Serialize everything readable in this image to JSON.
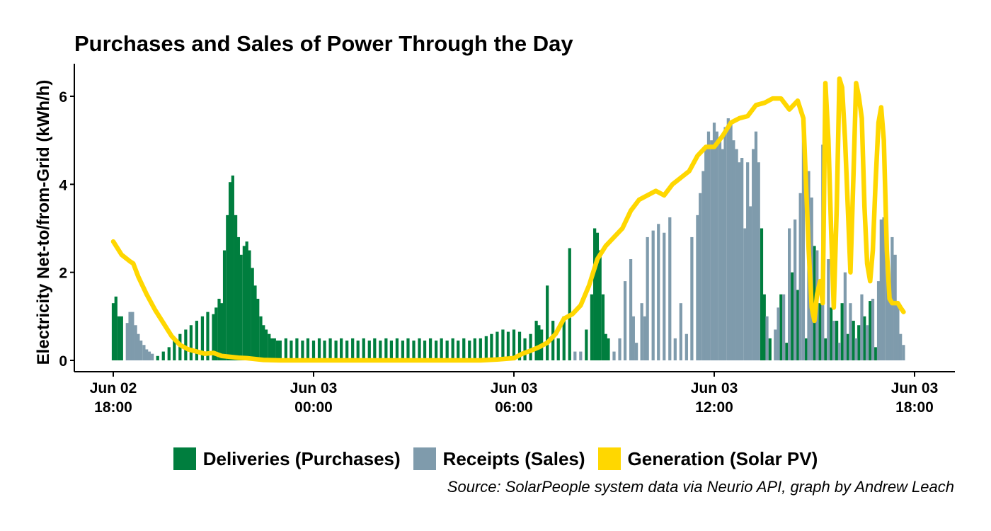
{
  "chart_data": {
    "type": "bar",
    "title": "Purchases and Sales of Power Through the Day",
    "ylabel": "Electricity Net-to/from-Grid (kWh/h)",
    "xlabel": "",
    "ylim": [
      0,
      6.7
    ],
    "x_range_hours": [
      -0.5,
      23.5
    ],
    "y_ticks": [
      "0",
      "2",
      "4",
      "6"
    ],
    "x_ticks": [
      {
        "date": "Jun 02",
        "time": "18:00",
        "x": 0
      },
      {
        "date": "Jun 03",
        "time": "00:00",
        "x": 6
      },
      {
        "date": "Jun 03",
        "time": "06:00",
        "x": 12
      },
      {
        "date": "Jun 03",
        "time": "12:00",
        "x": 18
      },
      {
        "date": "Jun 03",
        "time": "18:00",
        "x": 24
      }
    ],
    "grid": false,
    "legend_position": "bottom",
    "colors": {
      "Deliveries (Purchases)": "#007E3E",
      "Receipts (Sales)": "#7F9BAC",
      "Generation (Solar PV)": "#FFD700"
    },
    "series": [
      {
        "name": "Deliveries (Purchases)",
        "type": "bar",
        "points": [
          [
            0.0,
            1.3
          ],
          [
            0.08,
            1.45
          ],
          [
            0.17,
            1.0
          ],
          [
            0.25,
            1.0
          ],
          [
            1.33,
            0.1
          ],
          [
            1.5,
            0.2
          ],
          [
            1.67,
            0.3
          ],
          [
            1.83,
            0.45
          ],
          [
            2.0,
            0.6
          ],
          [
            2.17,
            0.7
          ],
          [
            2.33,
            0.8
          ],
          [
            2.5,
            0.9
          ],
          [
            2.67,
            1.0
          ],
          [
            2.83,
            1.1
          ],
          [
            3.0,
            1.05
          ],
          [
            3.08,
            1.2
          ],
          [
            3.17,
            1.4
          ],
          [
            3.25,
            1.3
          ],
          [
            3.33,
            2.5
          ],
          [
            3.42,
            3.3
          ],
          [
            3.5,
            4.05
          ],
          [
            3.58,
            4.2
          ],
          [
            3.67,
            3.3
          ],
          [
            3.75,
            2.8
          ],
          [
            3.83,
            2.4
          ],
          [
            3.92,
            2.6
          ],
          [
            4.0,
            2.7
          ],
          [
            4.08,
            2.5
          ],
          [
            4.17,
            2.1
          ],
          [
            4.25,
            1.7
          ],
          [
            4.33,
            1.4
          ],
          [
            4.42,
            1.0
          ],
          [
            4.5,
            0.8
          ],
          [
            4.58,
            0.7
          ],
          [
            4.67,
            0.6
          ],
          [
            4.75,
            0.5
          ],
          [
            4.83,
            0.5
          ],
          [
            4.92,
            0.45
          ],
          [
            5.0,
            0.45
          ],
          [
            5.17,
            0.5
          ],
          [
            5.33,
            0.45
          ],
          [
            5.5,
            0.5
          ],
          [
            5.67,
            0.45
          ],
          [
            5.83,
            0.5
          ],
          [
            6.0,
            0.45
          ],
          [
            6.17,
            0.5
          ],
          [
            6.33,
            0.45
          ],
          [
            6.5,
            0.5
          ],
          [
            6.67,
            0.45
          ],
          [
            6.83,
            0.5
          ],
          [
            7.0,
            0.45
          ],
          [
            7.17,
            0.5
          ],
          [
            7.33,
            0.45
          ],
          [
            7.5,
            0.5
          ],
          [
            7.67,
            0.45
          ],
          [
            7.83,
            0.5
          ],
          [
            8.0,
            0.45
          ],
          [
            8.17,
            0.5
          ],
          [
            8.33,
            0.45
          ],
          [
            8.5,
            0.5
          ],
          [
            8.67,
            0.45
          ],
          [
            8.83,
            0.5
          ],
          [
            9.0,
            0.45
          ],
          [
            9.17,
            0.5
          ],
          [
            9.33,
            0.45
          ],
          [
            9.5,
            0.5
          ],
          [
            9.67,
            0.45
          ],
          [
            9.83,
            0.5
          ],
          [
            10.0,
            0.45
          ],
          [
            10.17,
            0.5
          ],
          [
            10.33,
            0.45
          ],
          [
            10.5,
            0.5
          ],
          [
            10.67,
            0.45
          ],
          [
            10.83,
            0.5
          ],
          [
            11.0,
            0.5
          ],
          [
            11.17,
            0.55
          ],
          [
            11.33,
            0.6
          ],
          [
            11.5,
            0.65
          ],
          [
            11.67,
            0.7
          ],
          [
            11.83,
            0.65
          ],
          [
            12.0,
            0.7
          ],
          [
            12.17,
            0.65
          ],
          [
            12.33,
            0.5
          ],
          [
            12.5,
            0.6
          ],
          [
            12.67,
            0.9
          ],
          [
            12.75,
            0.8
          ],
          [
            12.83,
            0.7
          ],
          [
            13.0,
            1.7
          ],
          [
            13.17,
            0.9
          ],
          [
            13.33,
            0.5
          ],
          [
            13.5,
            1.0
          ],
          [
            13.67,
            2.55
          ],
          [
            14.17,
            0.7
          ],
          [
            14.33,
            1.5
          ],
          [
            14.42,
            3.0
          ],
          [
            14.5,
            2.9
          ],
          [
            14.58,
            2.5
          ],
          [
            14.67,
            1.5
          ],
          [
            14.75,
            0.6
          ],
          [
            14.83,
            0.5
          ],
          [
            19.42,
            3.0
          ],
          [
            19.5,
            1.5
          ],
          [
            19.67,
            0.5
          ],
          [
            20.0,
            1.5
          ],
          [
            20.17,
            0.4
          ],
          [
            20.33,
            2.0
          ],
          [
            20.5,
            1.6
          ],
          [
            20.75,
            0.5
          ],
          [
            21.0,
            2.6
          ],
          [
            21.17,
            1.3
          ],
          [
            21.33,
            0.5
          ],
          [
            21.5,
            1.2
          ],
          [
            21.67,
            0.9
          ],
          [
            21.83,
            1.3
          ],
          [
            22.0,
            0.6
          ],
          [
            22.17,
            0.9
          ],
          [
            22.33,
            0.8
          ],
          [
            22.5,
            1.0
          ],
          [
            22.67,
            1.35
          ],
          [
            22.83,
            0.3
          ]
        ]
      },
      {
        "name": "Receipts (Sales)",
        "type": "bar",
        "points": [
          [
            0.42,
            0.85
          ],
          [
            0.5,
            1.1
          ],
          [
            0.58,
            1.1
          ],
          [
            0.67,
            0.8
          ],
          [
            0.75,
            0.6
          ],
          [
            0.83,
            0.45
          ],
          [
            0.92,
            0.35
          ],
          [
            1.0,
            0.25
          ],
          [
            1.08,
            0.2
          ],
          [
            1.17,
            0.15
          ],
          [
            13.83,
            0.2
          ],
          [
            14.0,
            0.2
          ],
          [
            15.0,
            0.2
          ],
          [
            15.17,
            0.5
          ],
          [
            15.33,
            1.8
          ],
          [
            15.5,
            2.3
          ],
          [
            15.58,
            1.0
          ],
          [
            15.67,
            0.4
          ],
          [
            15.83,
            1.3
          ],
          [
            15.92,
            1.0
          ],
          [
            16.0,
            2.8
          ],
          [
            16.17,
            2.95
          ],
          [
            16.33,
            3.1
          ],
          [
            16.5,
            2.9
          ],
          [
            16.67,
            3.25
          ],
          [
            16.83,
            0.5
          ],
          [
            17.0,
            1.3
          ],
          [
            17.17,
            0.6
          ],
          [
            17.33,
            2.8
          ],
          [
            17.5,
            3.3
          ],
          [
            17.58,
            3.8
          ],
          [
            17.67,
            4.3
          ],
          [
            17.75,
            4.8
          ],
          [
            17.83,
            5.2
          ],
          [
            17.92,
            5.0
          ],
          [
            18.0,
            5.4
          ],
          [
            18.08,
            5.2
          ],
          [
            18.17,
            5.0
          ],
          [
            18.25,
            4.8
          ],
          [
            18.33,
            5.3
          ],
          [
            18.42,
            5.5
          ],
          [
            18.5,
            5.4
          ],
          [
            18.58,
            5.0
          ],
          [
            18.67,
            4.8
          ],
          [
            18.75,
            4.5
          ],
          [
            18.83,
            4.6
          ],
          [
            18.92,
            3.0
          ],
          [
            19.0,
            4.5
          ],
          [
            19.08,
            3.5
          ],
          [
            19.17,
            4.8
          ],
          [
            19.25,
            5.2
          ],
          [
            19.33,
            4.5
          ],
          [
            19.58,
            1.0
          ],
          [
            19.83,
            0.7
          ],
          [
            19.92,
            1.2
          ],
          [
            20.08,
            1.5
          ],
          [
            20.25,
            3.0
          ],
          [
            20.42,
            3.2
          ],
          [
            20.58,
            3.8
          ],
          [
            20.67,
            5.2
          ],
          [
            20.83,
            4.3
          ],
          [
            20.92,
            3.7
          ],
          [
            21.08,
            2.5
          ],
          [
            21.25,
            4.9
          ],
          [
            21.42,
            2.3
          ],
          [
            21.58,
            0.9
          ],
          [
            21.75,
            0.4
          ],
          [
            21.92,
            2.0
          ],
          [
            22.08,
            1.3
          ],
          [
            22.25,
            0.5
          ],
          [
            22.42,
            1.5
          ],
          [
            22.58,
            0.8
          ],
          [
            22.75,
            1.4
          ],
          [
            22.92,
            1.8
          ],
          [
            23.0,
            3.2
          ],
          [
            23.08,
            3.25
          ],
          [
            23.17,
            2.9
          ],
          [
            23.25,
            1.5
          ],
          [
            23.33,
            2.8
          ],
          [
            23.42,
            2.4
          ],
          [
            23.5,
            1.3
          ],
          [
            23.58,
            0.6
          ],
          [
            23.67,
            0.35
          ]
        ]
      },
      {
        "name": "Generation (Solar PV)",
        "type": "line",
        "points": [
          [
            0,
            2.7
          ],
          [
            0.25,
            2.4
          ],
          [
            0.5,
            2.25
          ],
          [
            0.6,
            2.2
          ],
          [
            0.75,
            1.9
          ],
          [
            1.0,
            1.5
          ],
          [
            1.25,
            1.15
          ],
          [
            1.5,
            0.85
          ],
          [
            1.75,
            0.55
          ],
          [
            2.0,
            0.35
          ],
          [
            2.25,
            0.25
          ],
          [
            2.5,
            0.2
          ],
          [
            2.75,
            0.15
          ],
          [
            3.0,
            0.17
          ],
          [
            3.25,
            0.1
          ],
          [
            3.5,
            0.08
          ],
          [
            3.75,
            0.06
          ],
          [
            4.0,
            0.05
          ],
          [
            4.25,
            0.03
          ],
          [
            4.5,
            0.01
          ],
          [
            5.0,
            0
          ],
          [
            6,
            0
          ],
          [
            7,
            0
          ],
          [
            8,
            0
          ],
          [
            9,
            0
          ],
          [
            10,
            0
          ],
          [
            11,
            0
          ],
          [
            11.5,
            0.02
          ],
          [
            12.0,
            0.05
          ],
          [
            12.25,
            0.15
          ],
          [
            12.5,
            0.22
          ],
          [
            12.75,
            0.3
          ],
          [
            13.0,
            0.4
          ],
          [
            13.25,
            0.6
          ],
          [
            13.5,
            0.95
          ],
          [
            13.75,
            1.05
          ],
          [
            14.0,
            1.25
          ],
          [
            14.25,
            1.7
          ],
          [
            14.5,
            2.3
          ],
          [
            14.75,
            2.6
          ],
          [
            15.0,
            2.8
          ],
          [
            15.25,
            3.0
          ],
          [
            15.5,
            3.4
          ],
          [
            15.75,
            3.65
          ],
          [
            16.0,
            3.75
          ],
          [
            16.25,
            3.85
          ],
          [
            16.5,
            3.75
          ],
          [
            16.75,
            4.0
          ],
          [
            17.0,
            4.15
          ],
          [
            17.25,
            4.3
          ],
          [
            17.5,
            4.65
          ],
          [
            17.75,
            4.85
          ],
          [
            18.0,
            4.85
          ],
          [
            18.25,
            5.1
          ],
          [
            18.5,
            5.4
          ],
          [
            18.75,
            5.5
          ],
          [
            19.0,
            5.55
          ],
          [
            19.25,
            5.8
          ],
          [
            19.5,
            5.85
          ],
          [
            19.75,
            5.95
          ],
          [
            20.0,
            5.95
          ],
          [
            20.25,
            5.7
          ],
          [
            20.5,
            5.9
          ],
          [
            20.67,
            5.5
          ],
          [
            20.83,
            2.5
          ],
          [
            20.92,
            1.2
          ],
          [
            21.0,
            0.9
          ],
          [
            21.08,
            1.5
          ],
          [
            21.17,
            1.8
          ],
          [
            21.25,
            1.3
          ],
          [
            21.33,
            6.3
          ],
          [
            21.42,
            5.0
          ],
          [
            21.5,
            3.0
          ],
          [
            21.58,
            1.2
          ],
          [
            21.67,
            3.5
          ],
          [
            21.75,
            6.4
          ],
          [
            21.83,
            6.2
          ],
          [
            21.92,
            5.0
          ],
          [
            22.0,
            3.5
          ],
          [
            22.08,
            2.0
          ],
          [
            22.17,
            4.2
          ],
          [
            22.25,
            6.3
          ],
          [
            22.33,
            6.0
          ],
          [
            22.42,
            5.5
          ],
          [
            22.5,
            3.5
          ],
          [
            22.58,
            2.2
          ],
          [
            22.67,
            1.8
          ],
          [
            22.75,
            2.5
          ],
          [
            22.83,
            4.0
          ],
          [
            22.92,
            5.4
          ],
          [
            23.0,
            5.75
          ],
          [
            23.08,
            5.0
          ],
          [
            23.17,
            2.5
          ],
          [
            23.25,
            1.4
          ],
          [
            23.33,
            1.3
          ],
          [
            23.42,
            1.3
          ],
          [
            23.5,
            1.3
          ],
          [
            23.58,
            1.2
          ],
          [
            23.67,
            1.1
          ]
        ]
      }
    ]
  },
  "legend": {
    "items": [
      {
        "label": "Deliveries (Purchases)",
        "color": "#007E3E"
      },
      {
        "label": "Receipts (Sales)",
        "color": "#7F9BAC"
      },
      {
        "label": "Generation (Solar PV)",
        "color": "#FFD700"
      }
    ]
  },
  "source_note": "Source: SolarPeople system data via Neurio API, graph by Andrew Leach"
}
